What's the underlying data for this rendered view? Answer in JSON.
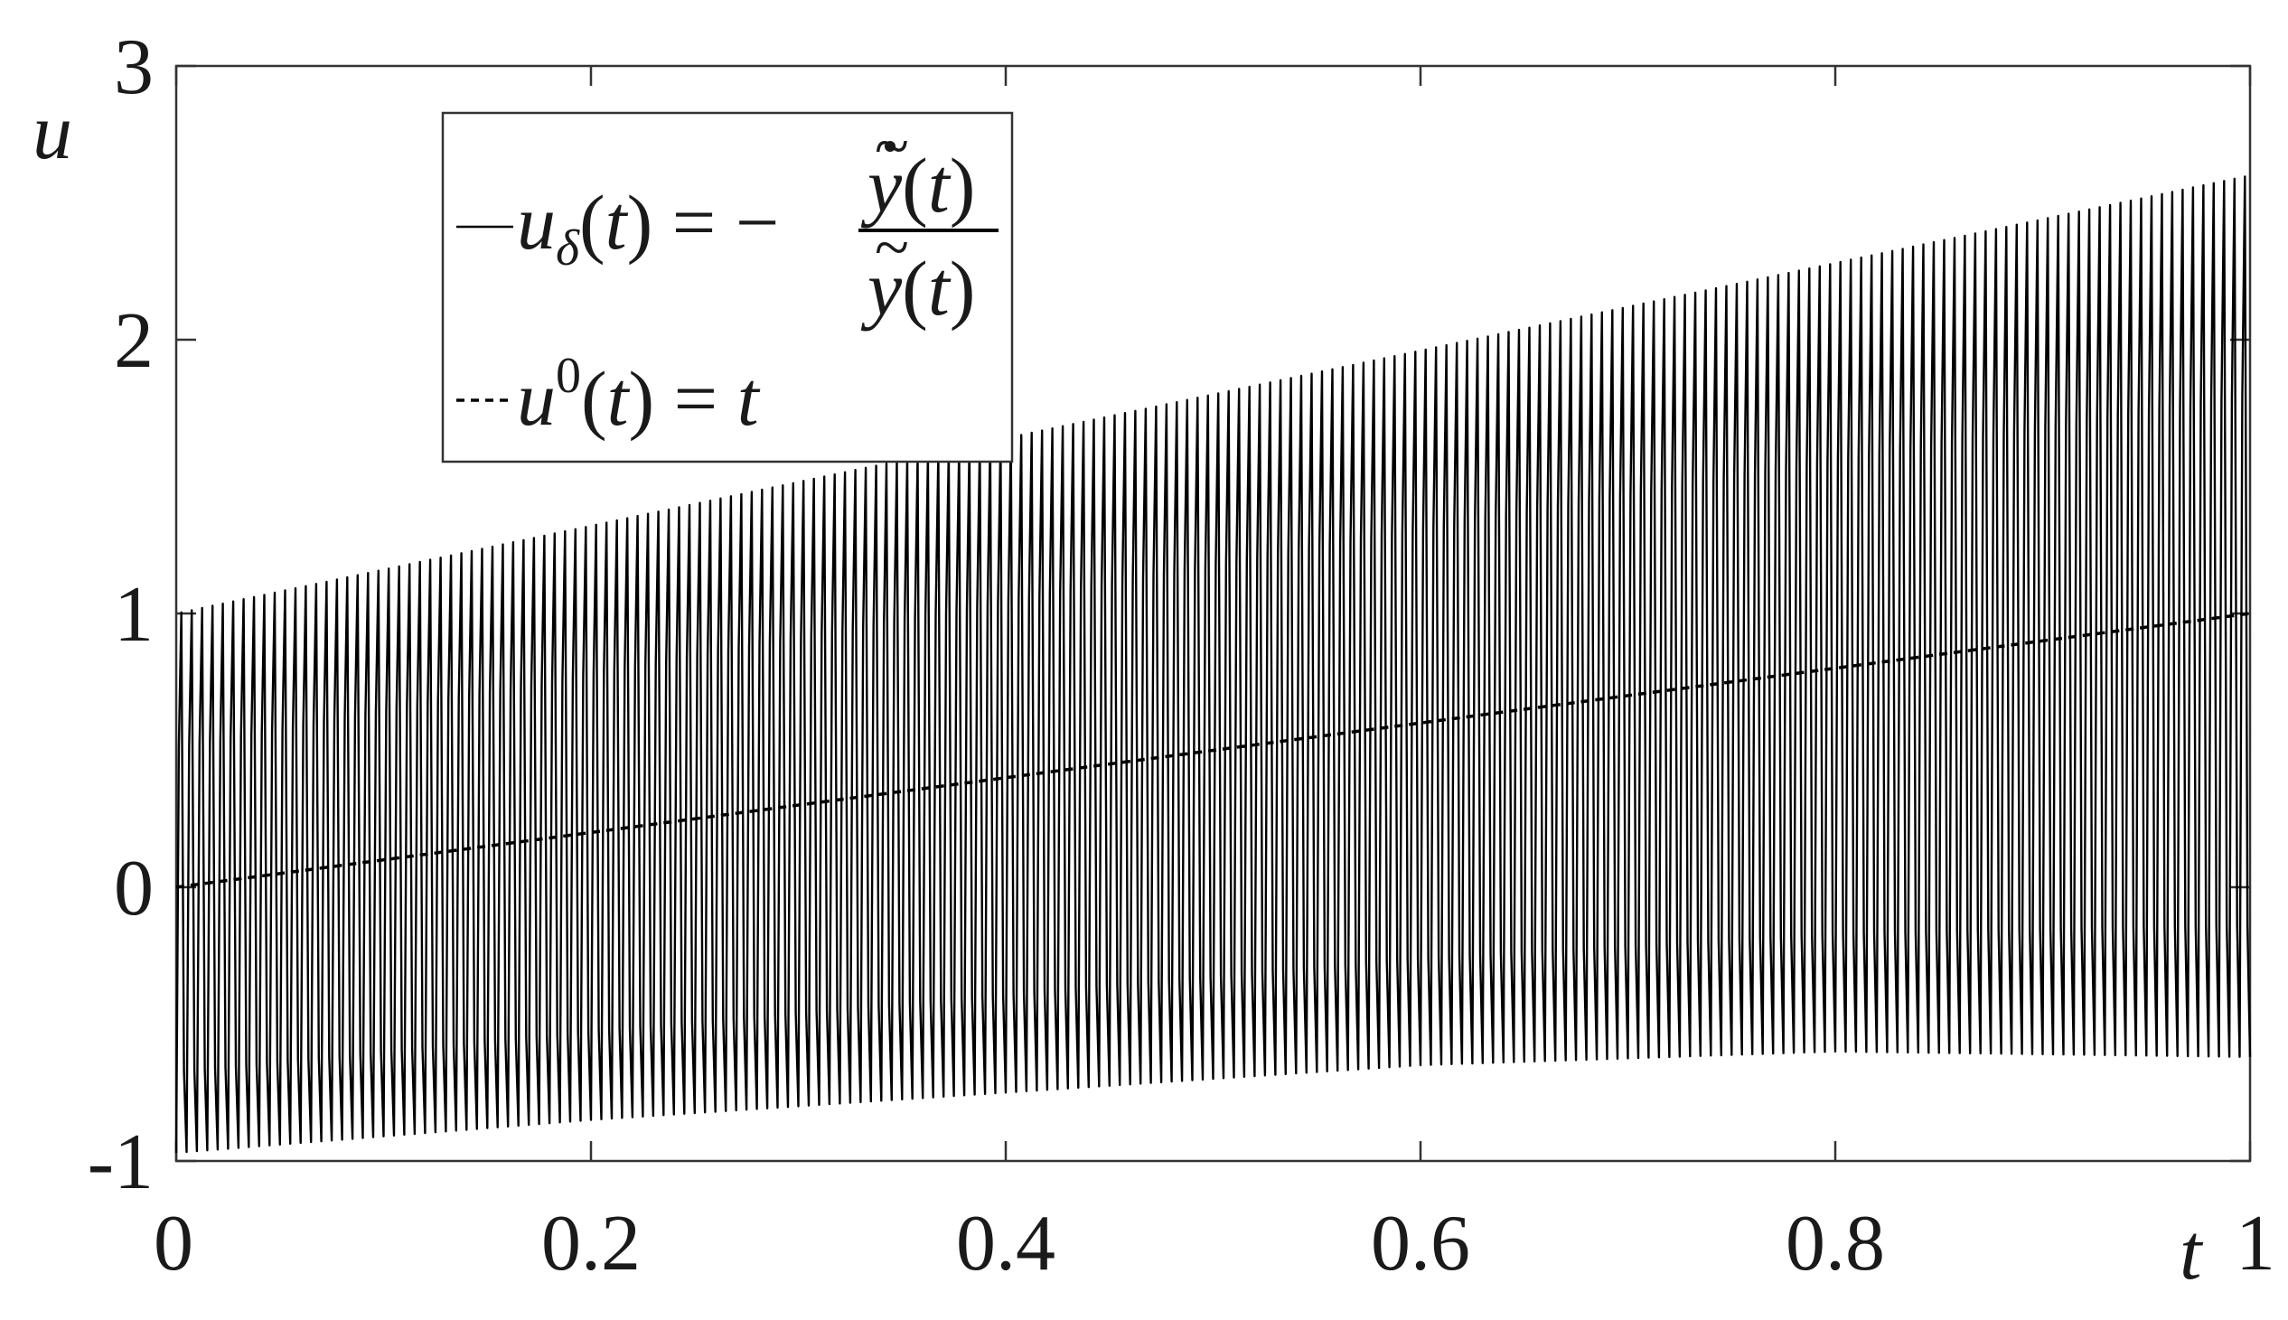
{
  "chart_data": {
    "type": "line",
    "title": "",
    "xlabel": "t",
    "ylabel": "u",
    "xlim": [
      0,
      1
    ],
    "ylim": [
      -1,
      3
    ],
    "xticks": [
      0,
      0.2,
      0.4,
      0.6,
      0.8,
      1
    ],
    "xtick_labels": [
      "0",
      "0.2",
      "0.4",
      "0.6",
      "0.8",
      "1"
    ],
    "yticks": [
      -1,
      0,
      1,
      2,
      3
    ],
    "ytick_labels": [
      "-1",
      "0",
      "1",
      "2",
      "3"
    ],
    "grid": false,
    "legend_position": "top-left",
    "series": [
      {
        "name": "u_δ(t) = −ỹ̇(t)/ỹ(t)",
        "style": "solid",
        "color": "#000000",
        "oscillation_periods": 200,
        "envelope": {
          "t": [
            0,
            0.2,
            0.4,
            0.6,
            0.8,
            1.0
          ],
          "upper": [
            1.0,
            1.32,
            1.64,
            1.96,
            2.28,
            2.6
          ],
          "lower": [
            -0.97,
            -0.85,
            -0.75,
            -0.65,
            -0.6,
            -0.62
          ]
        }
      },
      {
        "name": "u⁰(t) = t",
        "style": "dashed",
        "color": "#000000",
        "x": [
          0,
          0.2,
          0.4,
          0.6,
          0.8,
          1.0
        ],
        "y": [
          0,
          0.2,
          0.4,
          0.6,
          0.8,
          1.0
        ]
      }
    ]
  }
}
